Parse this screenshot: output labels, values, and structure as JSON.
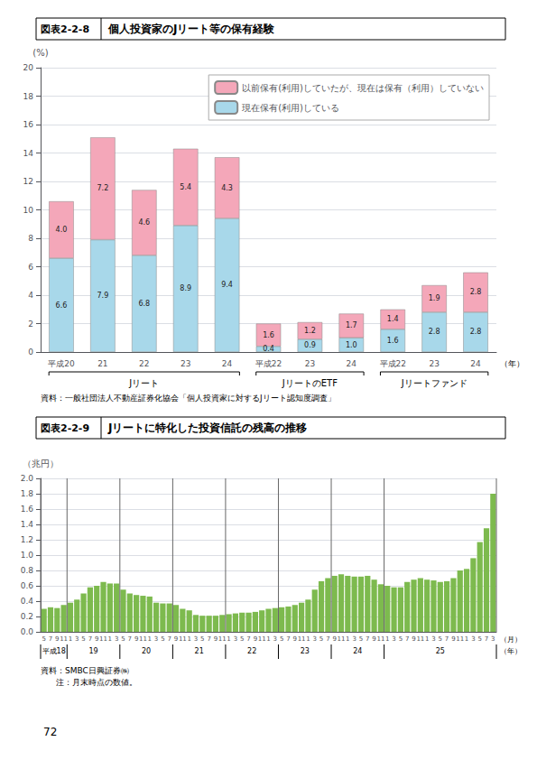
{
  "chart_data": [
    {
      "type": "bar",
      "title_box": "図表2-2-8",
      "title": "個人投資家のJリート等の保有経験",
      "ylabel": "(%)",
      "xlabel": "（年）",
      "categories": [
        "平成20",
        "21",
        "22",
        "23",
        "24",
        "平成22",
        "23",
        "24",
        "平成22",
        "23",
        "24"
      ],
      "groups": [
        {
          "name": "Jリート",
          "categories": [
            "平成20",
            "21",
            "22",
            "23",
            "24"
          ]
        },
        {
          "name": "JリートのETF",
          "categories": [
            "平成22",
            "23",
            "24"
          ]
        },
        {
          "name": "Jリートファンド",
          "categories": [
            "平成22",
            "23",
            "24"
          ]
        }
      ],
      "series": [
        {
          "name": "現在保有(利用)している",
          "color": "#a8d8ea",
          "values": [
            6.6,
            7.9,
            6.8,
            8.9,
            9.4,
            0.4,
            0.9,
            1.0,
            1.6,
            2.8,
            2.8
          ],
          "value_labels": [
            "6.6",
            "7.9",
            "6.8",
            "8.9",
            "9.4",
            "0.4",
            "0.9",
            "1.0",
            "1.6",
            "2.8",
            "2.8"
          ]
        },
        {
          "name": "以前保有(利用)していたが、現在は保有（利用）していない",
          "color": "#f4a7b9",
          "values": [
            4.0,
            7.2,
            4.6,
            5.4,
            4.3,
            1.6,
            1.2,
            1.7,
            1.4,
            1.9,
            2.8
          ],
          "value_labels": [
            "4.0",
            "7.2",
            "4.6",
            "5.4",
            "4.3",
            "1.6",
            "1.2",
            "1.7",
            "1.4",
            "1.9",
            "2.8"
          ]
        }
      ],
      "stacked": true,
      "data_labels": true,
      "ylim": [
        0,
        20
      ],
      "yticks": [
        0,
        2,
        4,
        6,
        8,
        10,
        12,
        14,
        16,
        18,
        20
      ],
      "grid": true,
      "legend": "upper right",
      "source": "資料：一般社団法人不動産証券化協会「個人投資家に対するJリート認知度調査」"
    },
    {
      "type": "bar",
      "title_box": "図表2-2-9",
      "title": "Jリートに特化した投資信託の残高の推移",
      "ylabel": "（兆円）",
      "xlabel": "（月）",
      "group_label": "（年）",
      "categories": [
        "5",
        "7",
        "9",
        "11",
        "1",
        "3",
        "5",
        "7",
        "9",
        "11",
        "1",
        "3",
        "5",
        "7",
        "9",
        "11",
        "1",
        "3",
        "5",
        "7",
        "9",
        "11",
        "1",
        "3",
        "5",
        "7",
        "9",
        "11",
        "1",
        "3",
        "5",
        "7",
        "9",
        "11",
        "1",
        "3",
        "5",
        "7",
        "9",
        "11",
        "1",
        "3",
        "5",
        "7",
        "9",
        "11",
        "1",
        "3",
        "5",
        "7",
        "9",
        "11",
        "1",
        "3",
        "5",
        "7",
        "9",
        "11",
        "1",
        "3",
        "5",
        "7",
        "9",
        "11",
        "1",
        "3",
        "5",
        "7",
        "3"
      ],
      "groups": [
        {
          "name": "平成18",
          "categories": [
            "5",
            "7",
            "9",
            "11"
          ]
        },
        {
          "name": "19",
          "categories": [
            "1",
            "3",
            "5",
            "7",
            "9",
            "11",
            "1",
            "3"
          ]
        },
        {
          "name": "20",
          "categories": [
            "5",
            "7",
            "9",
            "11",
            "1",
            "3",
            "5",
            "7"
          ]
        },
        {
          "name": "21",
          "categories": [
            "9",
            "11",
            "1",
            "3",
            "5",
            "7",
            "9",
            "11"
          ]
        },
        {
          "name": "22",
          "categories": [
            "1",
            "3",
            "5",
            "7",
            "9",
            "11",
            "1",
            "3"
          ]
        },
        {
          "name": "23",
          "categories": [
            "5",
            "7",
            "9",
            "11",
            "1",
            "3",
            "5",
            "7"
          ]
        },
        {
          "name": "24",
          "categories": [
            "9",
            "11",
            "1",
            "3",
            "5",
            "7",
            "9",
            "11"
          ]
        },
        {
          "name": "25",
          "categories": [
            "1",
            "3",
            "5",
            "7",
            "9",
            "11",
            "1",
            "3",
            "5",
            "7",
            "9",
            "11",
            "1",
            "3",
            "5",
            "7",
            "3"
          ]
        }
      ],
      "values": [
        0.3,
        0.32,
        0.31,
        0.35,
        0.38,
        0.42,
        0.5,
        0.58,
        0.6,
        0.65,
        0.63,
        0.63,
        0.55,
        0.5,
        0.48,
        0.47,
        0.46,
        0.38,
        0.37,
        0.37,
        0.35,
        0.3,
        0.28,
        0.22,
        0.21,
        0.21,
        0.21,
        0.22,
        0.23,
        0.24,
        0.25,
        0.25,
        0.26,
        0.28,
        0.3,
        0.31,
        0.32,
        0.33,
        0.35,
        0.38,
        0.42,
        0.55,
        0.66,
        0.7,
        0.73,
        0.75,
        0.73,
        0.72,
        0.72,
        0.73,
        0.68,
        0.62,
        0.6,
        0.58,
        0.58,
        0.65,
        0.68,
        0.7,
        0.68,
        0.67,
        0.65,
        0.66,
        0.7,
        0.8,
        0.82,
        0.96,
        1.17,
        1.35,
        1.8
      ],
      "color": "#7dba4e",
      "ylim": [
        0,
        2
      ],
      "yticks": [
        {
          "value": 0,
          "label": "0.0"
        },
        0.2,
        0.4,
        0.6,
        0.8,
        {
          "value": 1,
          "label": "1.0"
        },
        1.2,
        1.4,
        1.6,
        1.8,
        {
          "value": 2,
          "label": "2.0"
        }
      ],
      "grid": true,
      "source": "資料：SMBC日興証券㈱",
      "note": "　注：月末時点の数値。"
    }
  ],
  "page_number": "72"
}
